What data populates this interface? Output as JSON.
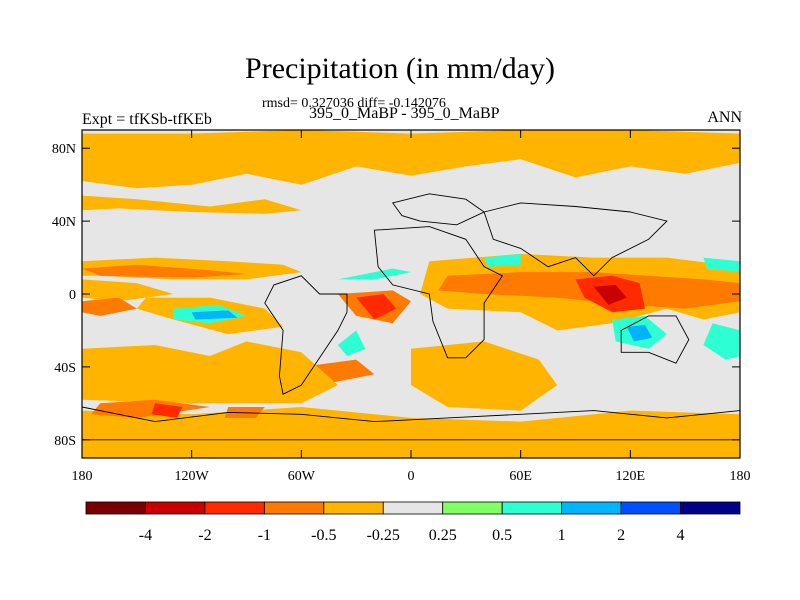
{
  "chart_data": {
    "type": "heatmap",
    "title": "Precipitation (in mm/day)",
    "stats_text": "rmsd= 0.327036 diff= -0.142076",
    "case_text": "395_0_MaBP - 395_0_MaBP",
    "expt_text": "Expt = tfKSb-tfKEb",
    "season_text": "ANN",
    "projection": "cylindrical-equidistant",
    "x_range": [
      -180,
      180
    ],
    "y_range": [
      -90,
      90
    ],
    "x_ticks": [
      {
        "value": -180,
        "label": "180"
      },
      {
        "value": -120,
        "label": "120W"
      },
      {
        "value": -60,
        "label": "60W"
      },
      {
        "value": 0,
        "label": "0"
      },
      {
        "value": 60,
        "label": "60E"
      },
      {
        "value": 120,
        "label": "120E"
      },
      {
        "value": 180,
        "label": "180"
      }
    ],
    "y_ticks": [
      {
        "value": 80,
        "label": "80N"
      },
      {
        "value": 40,
        "label": "40N"
      },
      {
        "value": 0,
        "label": "0"
      },
      {
        "value": -40,
        "label": "40S"
      },
      {
        "value": -80,
        "label": "80S"
      }
    ],
    "colorbar": {
      "colors": [
        "#7a0000",
        "#c80000",
        "#ff2a00",
        "#ff7a00",
        "#ffb400",
        "#e6e6e6",
        "#80ff66",
        "#2effd2",
        "#00b4ff",
        "#0050ff",
        "#000088"
      ],
      "labels": [
        "-4",
        "-2",
        "-1",
        "-0.5",
        "-0.25",
        "0.25",
        "0.5",
        "1",
        "2",
        "4"
      ]
    },
    "regions": [
      {
        "level": "-0.25",
        "points": [
          [
            -180,
            88
          ],
          [
            -120,
            88
          ],
          [
            -60,
            90
          ],
          [
            0,
            88
          ],
          [
            60,
            90
          ],
          [
            120,
            90
          ],
          [
            180,
            88
          ],
          [
            180,
            72
          ],
          [
            150,
            66
          ],
          [
            120,
            70
          ],
          [
            90,
            64
          ],
          [
            60,
            74
          ],
          [
            30,
            70
          ],
          [
            0,
            65
          ],
          [
            -30,
            70
          ],
          [
            -60,
            60
          ],
          [
            -90,
            66
          ],
          [
            -120,
            60
          ],
          [
            -150,
            58
          ],
          [
            -180,
            62
          ]
        ]
      },
      {
        "level": "-0.25",
        "points": [
          [
            -180,
            54
          ],
          [
            -150,
            52
          ],
          [
            -110,
            48
          ],
          [
            -80,
            52
          ],
          [
            -60,
            46
          ],
          [
            -80,
            44
          ],
          [
            -120,
            45
          ],
          [
            -160,
            47
          ],
          [
            -180,
            46
          ]
        ]
      },
      {
        "level": "-0.25",
        "points": [
          [
            -180,
            18
          ],
          [
            -140,
            20
          ],
          [
            -100,
            18
          ],
          [
            -70,
            16
          ],
          [
            -60,
            12
          ],
          [
            -90,
            8
          ],
          [
            -130,
            8
          ],
          [
            -170,
            10
          ],
          [
            -180,
            10
          ]
        ]
      },
      {
        "level": "-0.5",
        "points": [
          [
            -180,
            14
          ],
          [
            -150,
            16
          ],
          [
            -110,
            13
          ],
          [
            -90,
            11
          ],
          [
            -120,
            9
          ],
          [
            -170,
            10
          ]
        ]
      },
      {
        "level": "-0.25",
        "points": [
          [
            -180,
            8
          ],
          [
            -150,
            6
          ],
          [
            -130,
            0
          ],
          [
            -160,
            -4
          ],
          [
            -180,
            -2
          ]
        ]
      },
      {
        "level": "-0.5",
        "points": [
          [
            -180,
            -4
          ],
          [
            -160,
            -2
          ],
          [
            -150,
            -8
          ],
          [
            -170,
            -12
          ],
          [
            -180,
            -10
          ]
        ]
      },
      {
        "level": "-0.25",
        "points": [
          [
            -145,
            -2
          ],
          [
            -110,
            -2
          ],
          [
            -80,
            -8
          ],
          [
            -70,
            -18
          ],
          [
            -100,
            -22
          ],
          [
            -130,
            -14
          ],
          [
            -150,
            -8
          ]
        ]
      },
      {
        "level": "0.5",
        "points": [
          [
            -130,
            -8
          ],
          [
            -105,
            -6
          ],
          [
            -90,
            -12
          ],
          [
            -110,
            -16
          ],
          [
            -130,
            -14
          ]
        ]
      },
      {
        "level": "1",
        "points": [
          [
            -120,
            -10
          ],
          [
            -100,
            -9
          ],
          [
            -95,
            -13
          ],
          [
            -118,
            -14
          ]
        ]
      },
      {
        "level": "-0.25",
        "points": [
          [
            10,
            18
          ],
          [
            60,
            22
          ],
          [
            100,
            20
          ],
          [
            140,
            20
          ],
          [
            180,
            15
          ],
          [
            180,
            -10
          ],
          [
            160,
            -14
          ],
          [
            140,
            -8
          ],
          [
            110,
            -16
          ],
          [
            80,
            -20
          ],
          [
            60,
            -10
          ],
          [
            20,
            -8
          ],
          [
            5,
            0
          ]
        ]
      },
      {
        "level": "-0.5",
        "points": [
          [
            20,
            10
          ],
          [
            60,
            12
          ],
          [
            100,
            12
          ],
          [
            130,
            10
          ],
          [
            160,
            8
          ],
          [
            180,
            6
          ],
          [
            180,
            -4
          ],
          [
            150,
            -8
          ],
          [
            120,
            -6
          ],
          [
            80,
            -2
          ],
          [
            40,
            0
          ],
          [
            15,
            2
          ]
        ]
      },
      {
        "level": "-1",
        "points": [
          [
            90,
            8
          ],
          [
            110,
            10
          ],
          [
            125,
            6
          ],
          [
            128,
            -8
          ],
          [
            110,
            -10
          ],
          [
            95,
            -2
          ]
        ]
      },
      {
        "level": "-2",
        "points": [
          [
            100,
            4
          ],
          [
            112,
            5
          ],
          [
            118,
            -2
          ],
          [
            108,
            -6
          ]
        ]
      },
      {
        "level": "0.5",
        "points": [
          [
            110,
            -14
          ],
          [
            128,
            -12
          ],
          [
            140,
            -22
          ],
          [
            130,
            -30
          ],
          [
            112,
            -26
          ]
        ]
      },
      {
        "level": "1",
        "points": [
          [
            118,
            -18
          ],
          [
            128,
            -17
          ],
          [
            132,
            -24
          ],
          [
            122,
            -26
          ]
        ]
      },
      {
        "level": "0.5",
        "points": [
          [
            40,
            20
          ],
          [
            60,
            22
          ],
          [
            60,
            16
          ],
          [
            42,
            15
          ]
        ]
      },
      {
        "level": "0.5",
        "points": [
          [
            -40,
            8
          ],
          [
            -10,
            14
          ],
          [
            0,
            12
          ],
          [
            -20,
            8
          ]
        ]
      },
      {
        "level": "0.5",
        "points": [
          [
            160,
            20
          ],
          [
            180,
            18
          ],
          [
            180,
            12
          ],
          [
            162,
            14
          ]
        ]
      },
      {
        "level": "-0.5",
        "points": [
          [
            -40,
            0
          ],
          [
            -10,
            2
          ],
          [
            0,
            -4
          ],
          [
            -10,
            -16
          ],
          [
            -30,
            -12
          ]
        ]
      },
      {
        "level": "-1",
        "points": [
          [
            -30,
            -2
          ],
          [
            -15,
            0
          ],
          [
            -8,
            -8
          ],
          [
            -20,
            -14
          ]
        ]
      },
      {
        "level": "-0.25",
        "points": [
          [
            0,
            -30
          ],
          [
            40,
            -26
          ],
          [
            70,
            -36
          ],
          [
            80,
            -50
          ],
          [
            60,
            -64
          ],
          [
            20,
            -62
          ],
          [
            0,
            -50
          ]
        ]
      },
      {
        "level": "-0.5",
        "points": [
          [
            -60,
            -40
          ],
          [
            -30,
            -36
          ],
          [
            -20,
            -44
          ],
          [
            -50,
            -50
          ]
        ]
      },
      {
        "level": "-0.25",
        "points": [
          [
            -180,
            -30
          ],
          [
            -140,
            -28
          ],
          [
            -110,
            -34
          ],
          [
            -90,
            -26
          ],
          [
            -60,
            -32
          ],
          [
            -40,
            -50
          ],
          [
            -60,
            -60
          ],
          [
            -120,
            -60
          ],
          [
            -180,
            -58
          ]
        ]
      },
      {
        "level": "-0.25",
        "points": [
          [
            -180,
            -64
          ],
          [
            -120,
            -66
          ],
          [
            -60,
            -62
          ],
          [
            0,
            -68
          ],
          [
            60,
            -70
          ],
          [
            120,
            -64
          ],
          [
            180,
            -66
          ],
          [
            180,
            -90
          ],
          [
            -180,
            -90
          ]
        ]
      },
      {
        "level": "-0.5",
        "points": [
          [
            -170,
            -60
          ],
          [
            -140,
            -58
          ],
          [
            -110,
            -62
          ],
          [
            -150,
            -68
          ],
          [
            -175,
            -66
          ]
        ]
      },
      {
        "level": "-1",
        "points": [
          [
            -140,
            -60
          ],
          [
            -125,
            -62
          ],
          [
            -128,
            -68
          ],
          [
            -142,
            -66
          ]
        ]
      },
      {
        "level": "-0.5",
        "points": [
          [
            -100,
            -62
          ],
          [
            -80,
            -62
          ],
          [
            -85,
            -68
          ],
          [
            -102,
            -68
          ]
        ]
      },
      {
        "level": "0.5",
        "points": [
          [
            -40,
            -28
          ],
          [
            -30,
            -20
          ],
          [
            -25,
            -30
          ],
          [
            -35,
            -34
          ]
        ]
      },
      {
        "level": "0.5",
        "points": [
          [
            180,
            -20
          ],
          [
            165,
            -16
          ],
          [
            160,
            -28
          ],
          [
            172,
            -36
          ],
          [
            180,
            -34
          ]
        ]
      }
    ],
    "land_outlines": [
      {
        "name": "south-america",
        "points": [
          [
            -50,
            0
          ],
          [
            -35,
            0
          ],
          [
            -35,
            -10
          ],
          [
            -40,
            -20
          ],
          [
            -50,
            -35
          ],
          [
            -60,
            -50
          ],
          [
            -70,
            -55
          ],
          [
            -72,
            -45
          ],
          [
            -70,
            -20
          ],
          [
            -80,
            -5
          ],
          [
            -75,
            5
          ],
          [
            -60,
            10
          ]
        ]
      },
      {
        "name": "africa",
        "points": [
          [
            -20,
            35
          ],
          [
            10,
            37
          ],
          [
            30,
            30
          ],
          [
            40,
            15
          ],
          [
            50,
            10
          ],
          [
            40,
            -5
          ],
          [
            40,
            -25
          ],
          [
            30,
            -35
          ],
          [
            20,
            -35
          ],
          [
            12,
            -15
          ],
          [
            10,
            0
          ],
          [
            -10,
            5
          ],
          [
            -18,
            15
          ]
        ]
      },
      {
        "name": "europe",
        "points": [
          [
            -10,
            50
          ],
          [
            10,
            55
          ],
          [
            30,
            52
          ],
          [
            40,
            45
          ],
          [
            25,
            38
          ],
          [
            5,
            40
          ],
          [
            -5,
            43
          ]
        ]
      },
      {
        "name": "asia",
        "points": [
          [
            40,
            45
          ],
          [
            60,
            50
          ],
          [
            90,
            48
          ],
          [
            120,
            45
          ],
          [
            140,
            40
          ],
          [
            130,
            30
          ],
          [
            110,
            20
          ],
          [
            100,
            10
          ],
          [
            90,
            20
          ],
          [
            75,
            15
          ],
          [
            60,
            25
          ],
          [
            45,
            30
          ]
        ]
      },
      {
        "name": "australia",
        "points": [
          [
            115,
            -20
          ],
          [
            130,
            -12
          ],
          [
            145,
            -12
          ],
          [
            152,
            -25
          ],
          [
            145,
            -38
          ],
          [
            130,
            -32
          ],
          [
            115,
            -32
          ]
        ]
      },
      {
        "name": "antarctica",
        "points": [
          [
            -180,
            -62
          ],
          [
            -140,
            -70
          ],
          [
            -100,
            -65
          ],
          [
            -60,
            -66
          ],
          [
            -20,
            -70
          ],
          [
            20,
            -68
          ],
          [
            60,
            -66
          ],
          [
            100,
            -64
          ],
          [
            140,
            -68
          ],
          [
            180,
            -64
          ],
          [
            180,
            -80
          ],
          [
            -180,
            -80
          ]
        ]
      }
    ]
  }
}
